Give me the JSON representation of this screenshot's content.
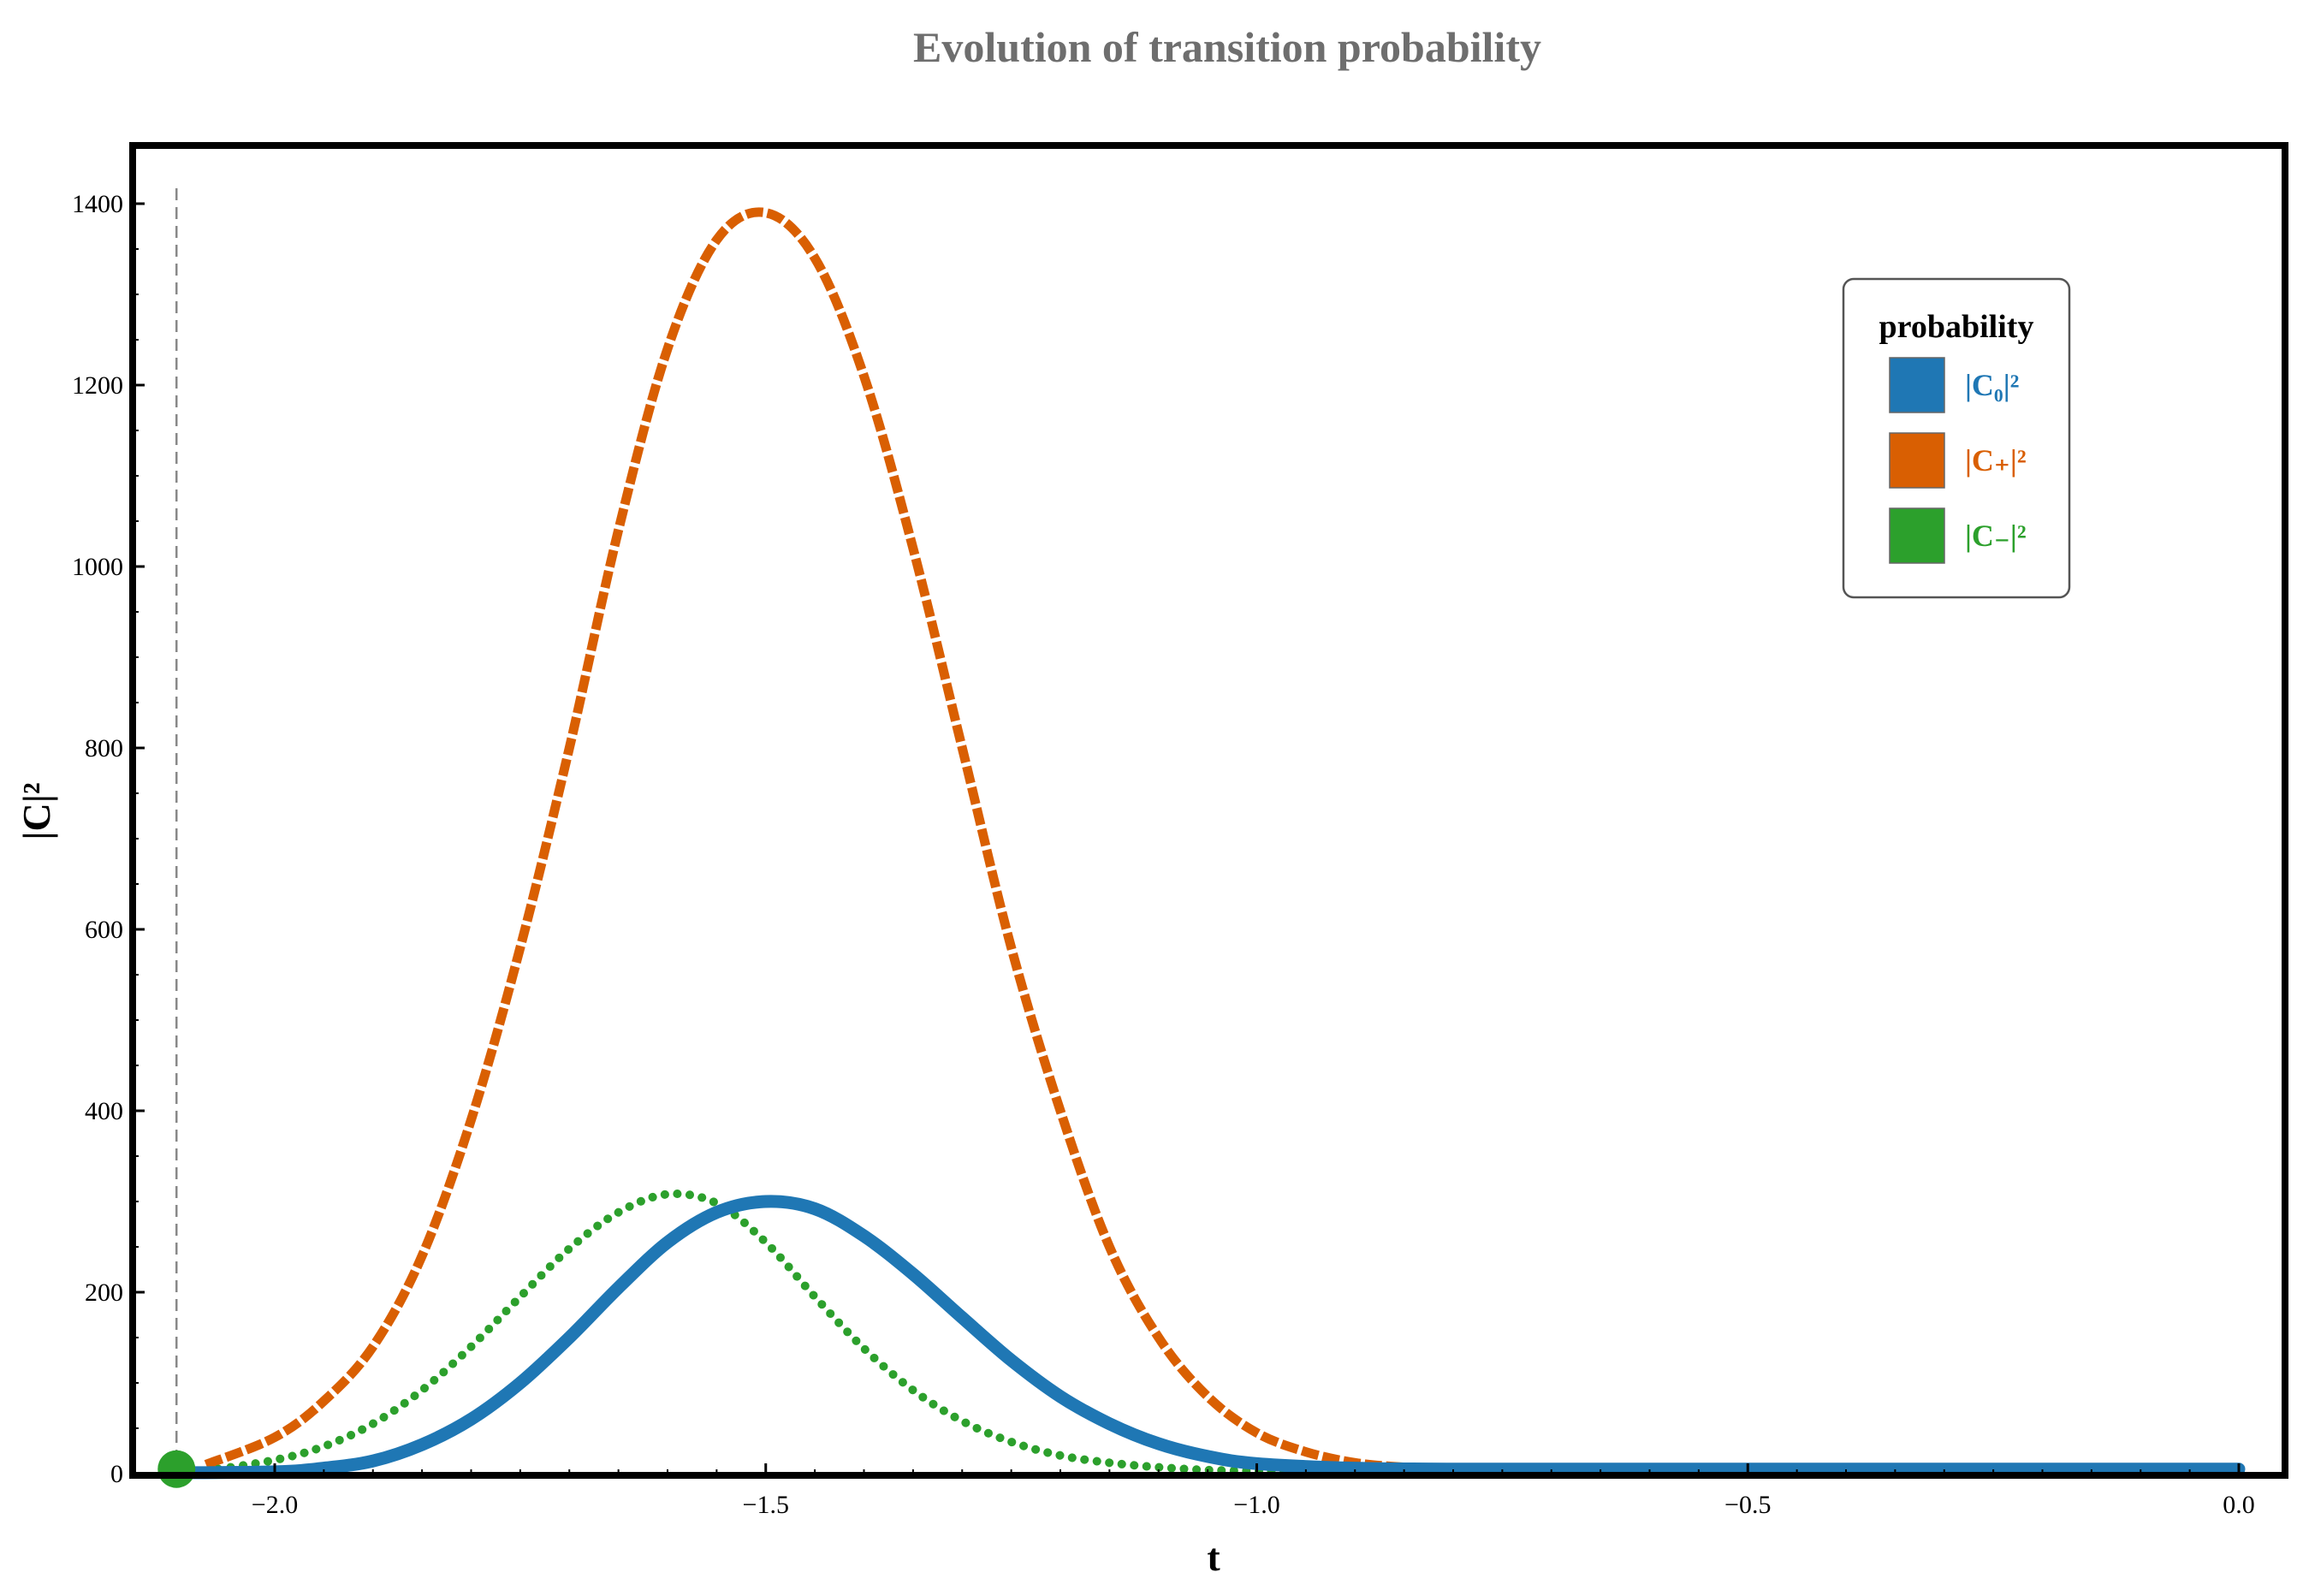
{
  "chart_data": {
    "type": "line",
    "title": "Evolution of transition probability",
    "xlabel": "t",
    "ylabel": "|C|²",
    "xlim": [
      -2.2,
      0.02
    ],
    "ylim": [
      0,
      1460
    ],
    "x_ticks": [
      -2.0,
      -1.5,
      -1.0,
      -0.5,
      0.0
    ],
    "x_tick_labels": [
      "−2.0",
      "−1.5",
      "−1.0",
      "−0.5",
      "0.0"
    ],
    "y_ticks": [
      0,
      200,
      400,
      600,
      800,
      1000,
      1200,
      1400
    ],
    "y_tick_labels": [
      "0",
      "200",
      "400",
      "600",
      "800",
      "1000",
      "1200",
      "1400"
    ],
    "grid": false,
    "legend": {
      "title": "probability",
      "position": "top-right"
    },
    "marker_line": {
      "x": -2.1,
      "style": "dashed",
      "color": "#888888"
    },
    "start_marker": {
      "x": -2.1,
      "y": 5,
      "color": "#2ca02c"
    },
    "series": [
      {
        "name": "|C₀|²",
        "color": "#1f77b4",
        "style": "solid",
        "x": [
          -2.1,
          -2.0,
          -1.95,
          -1.9,
          -1.85,
          -1.8,
          -1.75,
          -1.7,
          -1.65,
          -1.6,
          -1.55,
          -1.5,
          -1.45,
          -1.4,
          -1.35,
          -1.3,
          -1.25,
          -1.2,
          -1.15,
          -1.1,
          -1.05,
          -1.0,
          -0.9,
          -0.8,
          -0.6,
          -0.4,
          -0.2,
          0.0
        ],
        "y": [
          1,
          2,
          6,
          14,
          32,
          60,
          100,
          150,
          205,
          255,
          288,
          300,
          292,
          262,
          220,
          172,
          125,
          85,
          55,
          33,
          19,
          11,
          6,
          5,
          5,
          5,
          5,
          5
        ]
      },
      {
        "name": "|C₊|²",
        "color": "#d95f02",
        "style": "dashed",
        "x": [
          -2.07,
          -2.0,
          -1.95,
          -1.9,
          -1.85,
          -1.8,
          -1.75,
          -1.7,
          -1.65,
          -1.6,
          -1.55,
          -1.5,
          -1.45,
          -1.4,
          -1.35,
          -1.3,
          -1.25,
          -1.2,
          -1.15,
          -1.1,
          -1.05,
          -1.0,
          -0.95,
          -0.9,
          -0.85,
          -0.8,
          -0.7,
          -0.5,
          -0.3,
          0.0
        ],
        "y": [
          10,
          40,
          80,
          140,
          240,
          390,
          580,
          800,
          1040,
          1240,
          1360,
          1390,
          1340,
          1210,
          1020,
          800,
          580,
          400,
          250,
          150,
          85,
          45,
          24,
          12,
          7,
          4,
          2,
          1,
          1,
          1
        ]
      },
      {
        "name": "|C₋|²",
        "color": "#2ca02c",
        "style": "dotted",
        "x": [
          -2.07,
          -2.0,
          -1.95,
          -1.9,
          -1.85,
          -1.8,
          -1.75,
          -1.7,
          -1.65,
          -1.6,
          -1.55,
          -1.5,
          -1.45,
          -1.4,
          -1.35,
          -1.3,
          -1.25,
          -1.2,
          -1.15,
          -1.1,
          -1.05,
          -1.0,
          -0.9,
          -0.8,
          -0.6,
          -0.3,
          0.0
        ],
        "y": [
          3,
          15,
          30,
          55,
          92,
          140,
          195,
          248,
          288,
          308,
          298,
          255,
          195,
          138,
          92,
          58,
          35,
          20,
          12,
          7,
          4,
          3,
          2,
          1,
          1,
          1,
          1
        ]
      }
    ]
  }
}
